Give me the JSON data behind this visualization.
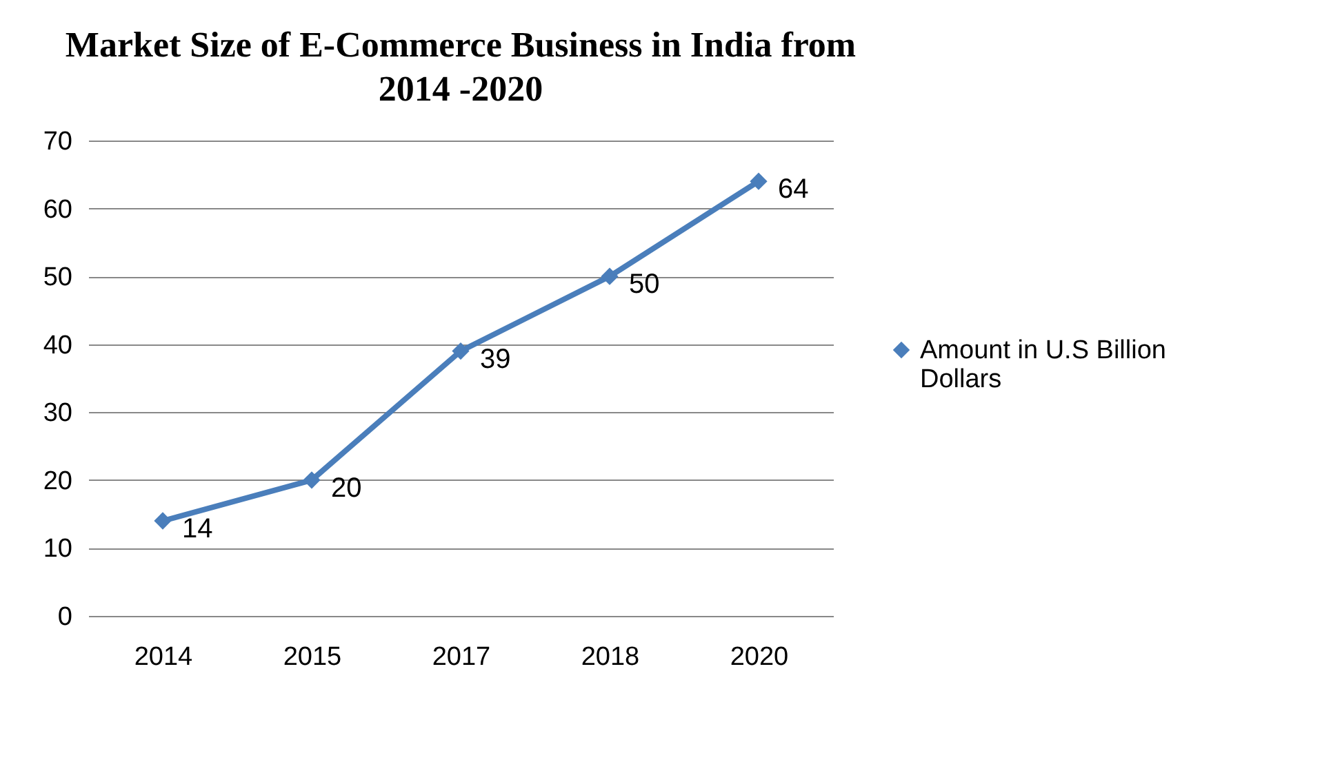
{
  "chart_data": {
    "type": "line",
    "title": "Market Size of E-Commerce Business in India from 2014 -2020",
    "categories": [
      "2014",
      "2015",
      "2017",
      "2018",
      "2020"
    ],
    "series": [
      {
        "name": "Amount in U.S Billion Dollars",
        "color": "#4a7ebb",
        "values": [
          14,
          20,
          39,
          50,
          64
        ]
      }
    ],
    "ylim": [
      0,
      70
    ],
    "yticks": [
      0,
      10,
      20,
      30,
      40,
      50,
      60,
      70
    ],
    "grid": "y",
    "legend": "right",
    "marker": "diamond",
    "line_style": "solid",
    "data_labels": true
  }
}
